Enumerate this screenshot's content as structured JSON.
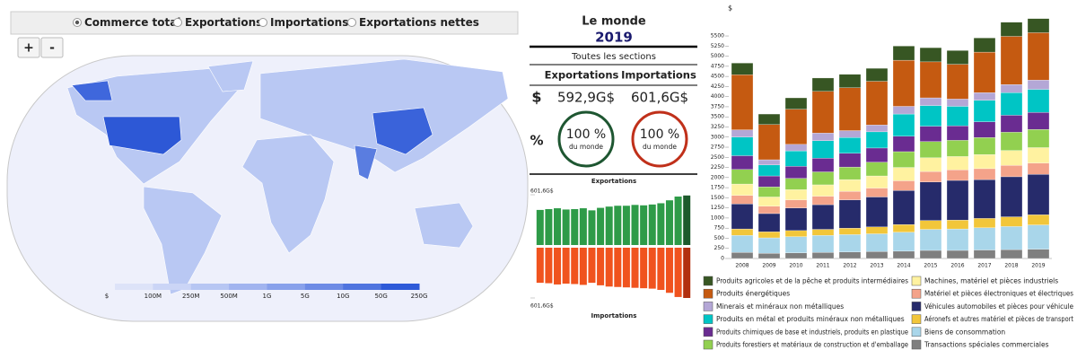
{
  "controls": {
    "options": [
      "Commerce total",
      "Exportations",
      "Importations",
      "Exportations nettes"
    ],
    "selected": 0,
    "zoom": [
      "+",
      "-"
    ]
  },
  "map": {
    "legend": {
      "labels": [
        "$",
        "100M",
        "250M",
        "500M",
        "1G",
        "5G",
        "10G",
        "50G",
        "250G"
      ],
      "colors": [
        "#dde3f8",
        "#cbd5f6",
        "#b7c6f3",
        "#a1b4ef",
        "#88a1eb",
        "#6d8be5",
        "#4f74df",
        "#2e5ad8"
      ]
    }
  },
  "summary": {
    "region": "Le monde",
    "year": "2019",
    "section": "Toutes les sections",
    "headers": [
      "Exportations",
      "Importations"
    ],
    "dollar_label": "$",
    "percent_label": "%",
    "values": [
      "592,9G$",
      "601,6G$"
    ],
    "shares": [
      {
        "value": "100 %",
        "caption": "du monde",
        "color": "#1e5631"
      },
      {
        "value": "100 %",
        "caption": "du monde",
        "color": "#c0301a"
      }
    ]
  },
  "chart_data": [
    {
      "type": "bar",
      "stacked": true,
      "ylabel": "$",
      "categories": [
        "2008",
        "2009",
        "2010",
        "2011",
        "2012",
        "2013",
        "2014",
        "2015",
        "2016",
        "2017",
        "2018",
        "2019"
      ],
      "ylim": [
        0,
        6000
      ],
      "yticks": [
        0,
        250,
        500,
        750,
        1000,
        1250,
        1500,
        1750,
        2000,
        2250,
        2500,
        2750,
        3000,
        3250,
        3500,
        3750,
        4000,
        4250,
        4500,
        4750,
        5000,
        5250,
        5500
      ],
      "series": [
        {
          "name": "Produits agricoles et de la pêche et produits intermédiaires",
          "color": "#375623",
          "values": [
            290,
            260,
            280,
            330,
            330,
            320,
            350,
            350,
            340,
            350,
            350,
            350
          ]
        },
        {
          "name": "Produits énergétiques",
          "color": "#c55a11",
          "values": [
            1360,
            870,
            870,
            1030,
            1060,
            1080,
            1140,
            890,
            860,
            1000,
            1190,
            1170
          ]
        },
        {
          "name": "Minerais et minéraux non métalliques",
          "color": "#b4a7d6",
          "values": [
            180,
            130,
            160,
            190,
            170,
            170,
            190,
            190,
            180,
            190,
            200,
            230
          ]
        },
        {
          "name": "Produits en métal et produits minéraux non métalliques",
          "color": "#00c5c5",
          "values": [
            460,
            270,
            380,
            430,
            390,
            400,
            550,
            510,
            480,
            530,
            560,
            570
          ]
        },
        {
          "name": "Produits chimiques de base et industriels, produits en plastique",
          "color": "#6a2c91",
          "values": [
            340,
            270,
            300,
            340,
            340,
            350,
            380,
            380,
            360,
            390,
            420,
            420
          ]
        },
        {
          "name": "Produits forestiers et matériaux de construction et d'emballage",
          "color": "#92d050",
          "values": [
            360,
            250,
            280,
            320,
            310,
            340,
            390,
            400,
            400,
            420,
            450,
            450
          ]
        },
        {
          "name": "Machines, matériel et pièces industriels",
          "color": "#fff2a0",
          "values": [
            280,
            230,
            250,
            280,
            290,
            300,
            330,
            340,
            330,
            350,
            370,
            380
          ]
        },
        {
          "name": "Matériel et pièces électroniques et électriques",
          "color": "#f4a38a",
          "values": [
            210,
            180,
            200,
            210,
            210,
            220,
            240,
            260,
            260,
            270,
            280,
            280
          ]
        },
        {
          "name": "Véhicules automobiles et pièces pour véhicule",
          "color": "#262b6b",
          "values": [
            620,
            450,
            560,
            610,
            700,
            740,
            840,
            950,
            980,
            960,
            990,
            1000
          ]
        },
        {
          "name": "Aéronefs et autres matériel et pièces de transport",
          "color": "#f2c63a",
          "values": [
            160,
            150,
            150,
            150,
            160,
            170,
            190,
            220,
            220,
            230,
            240,
            250
          ]
        },
        {
          "name": "Biens de consommation",
          "color": "#a9d6ea",
          "values": [
            420,
            380,
            400,
            420,
            430,
            440,
            470,
            520,
            530,
            550,
            570,
            600
          ]
        },
        {
          "name": "Transactions spéciales commerciales",
          "color": "#7f7f7f",
          "values": [
            150,
            130,
            140,
            150,
            160,
            170,
            180,
            200,
            200,
            210,
            220,
            230
          ]
        }
      ]
    },
    {
      "type": "bar",
      "direction": "up",
      "title": "Exportations",
      "color": "#2e9b48",
      "highlight_color": "#1d5a2c",
      "values": [
        420,
        430,
        440,
        425,
        430,
        440,
        415,
        445,
        460,
        470,
        470,
        480,
        475,
        485,
        500,
        535,
        580,
        592.9
      ],
      "ylim": [
        0,
        601.6
      ],
      "yticks": [
        {
          "value": 601.6,
          "label": "601,6G$"
        }
      ]
    },
    {
      "type": "bar",
      "direction": "down",
      "title": "Importations",
      "color": "#f0531e",
      "highlight_color": "#b23010",
      "values": [
        420,
        425,
        440,
        430,
        435,
        445,
        420,
        450,
        465,
        470,
        475,
        480,
        485,
        490,
        505,
        540,
        590,
        601.6
      ],
      "ylim": [
        0,
        601.6
      ],
      "yticks": [
        {
          "value": 601.6,
          "label": "601,6G$"
        }
      ]
    }
  ]
}
